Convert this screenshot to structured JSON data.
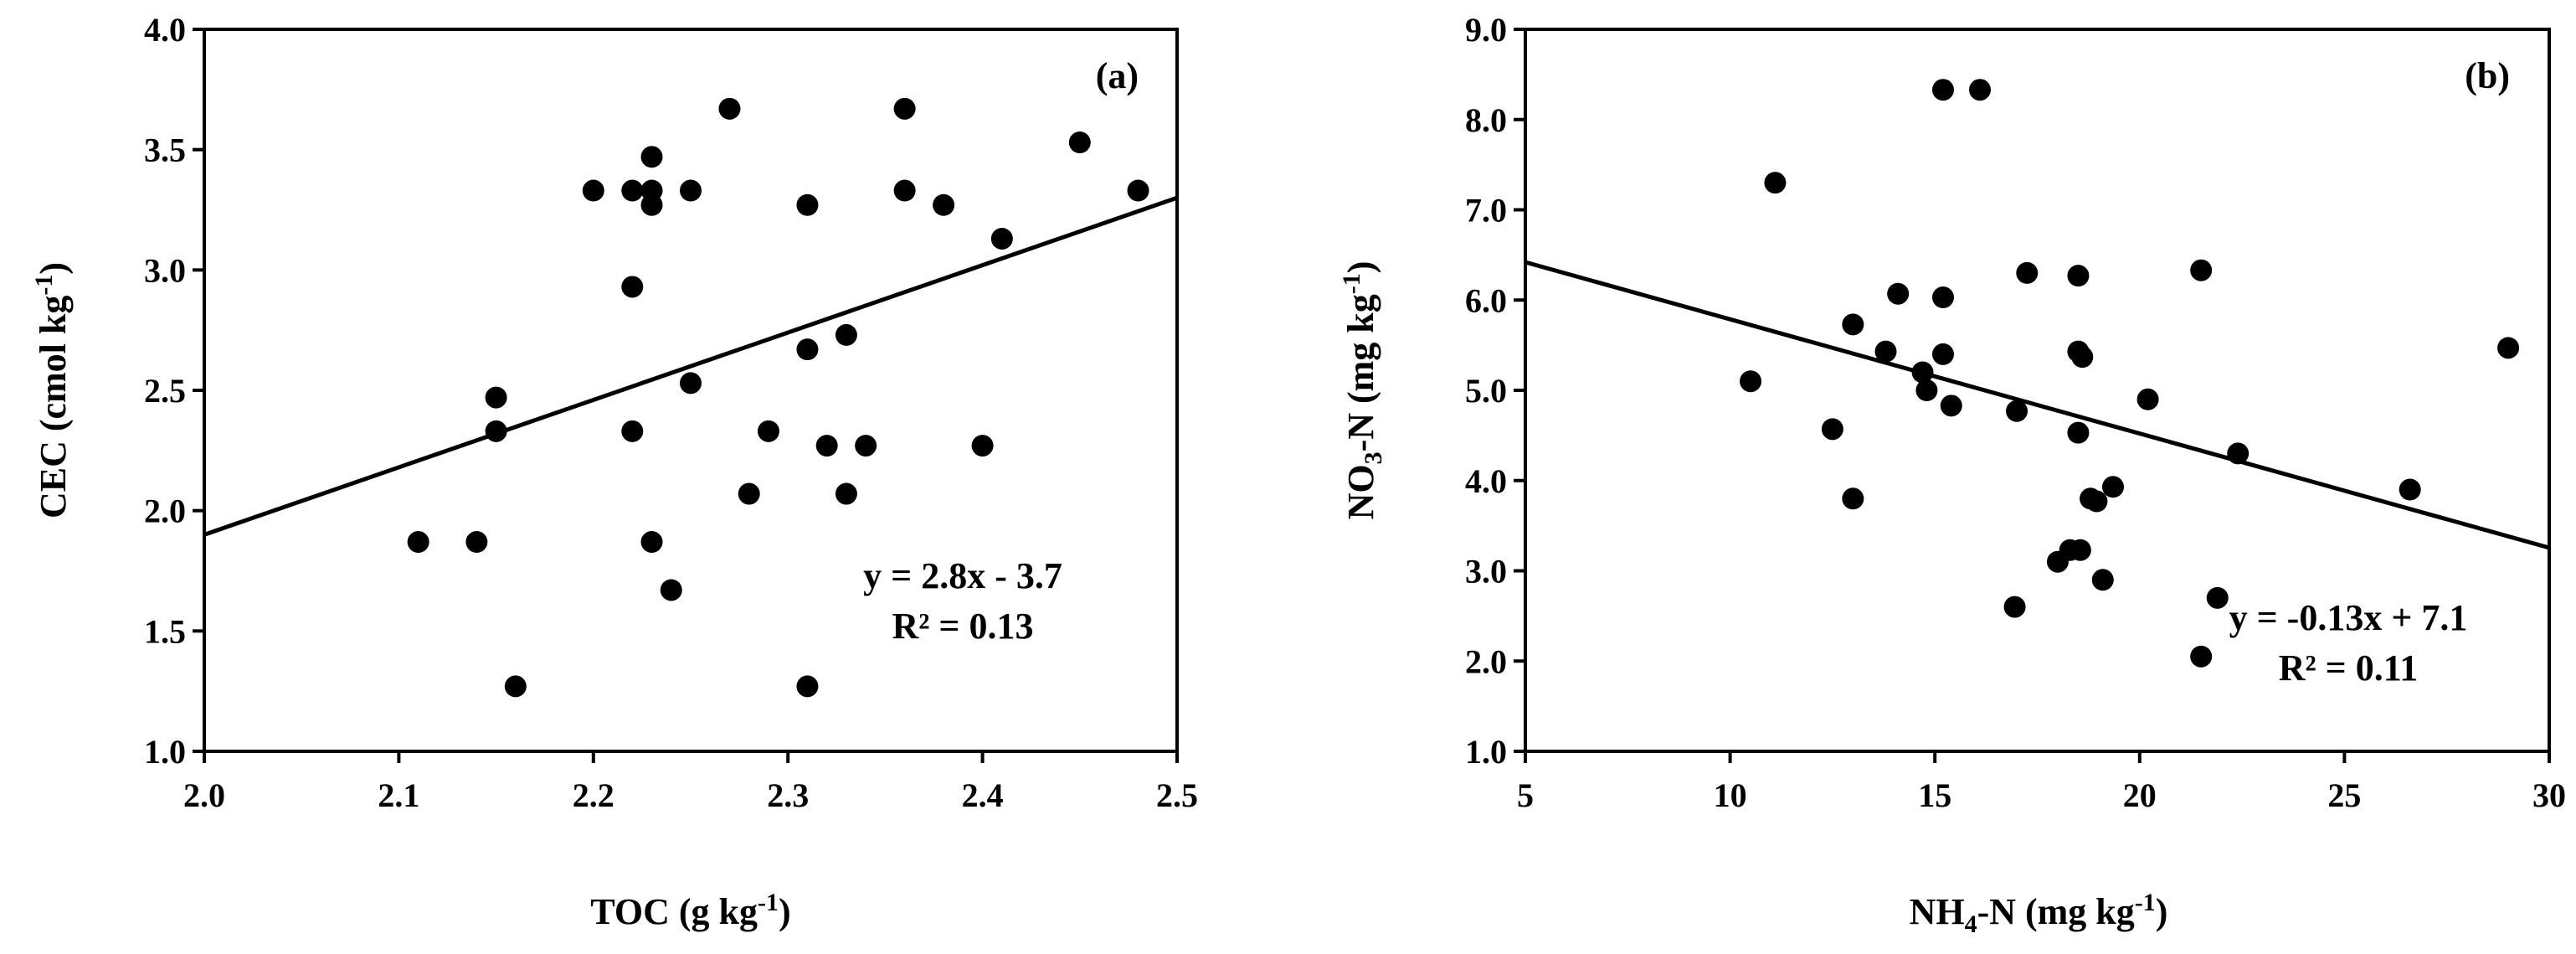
{
  "chart_data": [
    {
      "type": "scatter",
      "panel_label": "(a)",
      "xlabel_main": "TOC (g kg",
      "xlabel_sup": "-1",
      "xlabel_close": ")",
      "ylabel_main": "CEC (cmol kg",
      "ylabel_sup": "-1",
      "ylabel_close": ")",
      "xlim": [
        2.0,
        2.5
      ],
      "ylim": [
        1.0,
        4.0
      ],
      "xticks": [
        2.0,
        2.1,
        2.2,
        2.3,
        2.4,
        2.5
      ],
      "xtick_labels": [
        "2.0",
        "2.1",
        "2.2",
        "2.3",
        "2.4",
        "2.5"
      ],
      "yticks": [
        1.0,
        1.5,
        2.0,
        2.5,
        3.0,
        3.5,
        4.0
      ],
      "ytick_labels": [
        "1.0",
        "1.5",
        "2.0",
        "2.5",
        "3.0",
        "3.5",
        "4.0"
      ],
      "equation": "y = 2.8x - 3.7",
      "r_squared": "R² = 0.13",
      "trendline": {
        "slope": 2.8,
        "intercept": -3.7
      },
      "points": [
        {
          "x": 2.11,
          "y": 1.87
        },
        {
          "x": 2.14,
          "y": 1.87
        },
        {
          "x": 2.15,
          "y": 2.47
        },
        {
          "x": 2.15,
          "y": 2.33
        },
        {
          "x": 2.16,
          "y": 1.27
        },
        {
          "x": 2.2,
          "y": 3.33
        },
        {
          "x": 2.22,
          "y": 3.33
        },
        {
          "x": 2.22,
          "y": 2.93
        },
        {
          "x": 2.22,
          "y": 2.33
        },
        {
          "x": 2.23,
          "y": 3.47
        },
        {
          "x": 2.23,
          "y": 3.33
        },
        {
          "x": 2.23,
          "y": 3.27
        },
        {
          "x": 2.23,
          "y": 1.87
        },
        {
          "x": 2.24,
          "y": 1.67
        },
        {
          "x": 2.25,
          "y": 3.33
        },
        {
          "x": 2.25,
          "y": 2.53
        },
        {
          "x": 2.27,
          "y": 3.67
        },
        {
          "x": 2.28,
          "y": 2.07
        },
        {
          "x": 2.29,
          "y": 2.33
        },
        {
          "x": 2.31,
          "y": 3.27
        },
        {
          "x": 2.31,
          "y": 2.67
        },
        {
          "x": 2.31,
          "y": 1.27
        },
        {
          "x": 2.32,
          "y": 2.27
        },
        {
          "x": 2.33,
          "y": 2.73
        },
        {
          "x": 2.33,
          "y": 2.07
        },
        {
          "x": 2.34,
          "y": 2.27
        },
        {
          "x": 2.36,
          "y": 3.67
        },
        {
          "x": 2.36,
          "y": 3.33
        },
        {
          "x": 2.38,
          "y": 3.27
        },
        {
          "x": 2.4,
          "y": 2.27
        },
        {
          "x": 2.41,
          "y": 3.13
        },
        {
          "x": 2.45,
          "y": 3.53
        },
        {
          "x": 2.48,
          "y": 3.33
        }
      ]
    },
    {
      "type": "scatter",
      "panel_label": "(b)",
      "xlabel_main": "NH",
      "xlabel_sub": "4",
      "xlabel_rest": "-N (mg kg",
      "xlabel_sup": "-1",
      "xlabel_close": ")",
      "ylabel_main": "NO",
      "ylabel_sub": "3",
      "ylabel_rest": "-N (mg kg",
      "ylabel_sup": "-1",
      "ylabel_close": ")",
      "xlim": [
        5,
        30
      ],
      "ylim": [
        1.0,
        9.0
      ],
      "xticks": [
        5,
        10,
        15,
        20,
        25,
        30
      ],
      "xtick_labels": [
        "5",
        "10",
        "15",
        "20",
        "25",
        "30"
      ],
      "yticks": [
        1,
        2,
        3,
        4,
        5,
        6,
        7,
        8,
        9
      ],
      "ytick_labels": [
        "1.0",
        "2.0",
        "3.0",
        "4.0",
        "5.0",
        "6.0",
        "7.0",
        "8.0",
        "9.0"
      ],
      "equation": "y = -0.13x + 7.1",
      "r_squared": "R² = 0.11",
      "trendline": {
        "slope": -0.1266,
        "intercept": 7.053
      },
      "points": [
        {
          "x": 10.5,
          "y": 5.1
        },
        {
          "x": 11.1,
          "y": 7.3
        },
        {
          "x": 12.5,
          "y": 4.57
        },
        {
          "x": 13.0,
          "y": 5.73
        },
        {
          "x": 13.0,
          "y": 3.8
        },
        {
          "x": 13.8,
          "y": 5.43
        },
        {
          "x": 14.1,
          "y": 6.07
        },
        {
          "x": 14.7,
          "y": 5.2
        },
        {
          "x": 14.8,
          "y": 5.0
        },
        {
          "x": 15.2,
          "y": 8.33
        },
        {
          "x": 15.2,
          "y": 6.03
        },
        {
          "x": 15.2,
          "y": 5.4
        },
        {
          "x": 15.4,
          "y": 4.83
        },
        {
          "x": 16.1,
          "y": 8.33
        },
        {
          "x": 17.0,
          "y": 4.77
        },
        {
          "x": 16.95,
          "y": 2.6
        },
        {
          "x": 17.25,
          "y": 6.3
        },
        {
          "x": 18.0,
          "y": 3.1
        },
        {
          "x": 18.3,
          "y": 3.23
        },
        {
          "x": 18.5,
          "y": 6.27
        },
        {
          "x": 18.5,
          "y": 5.43
        },
        {
          "x": 18.6,
          "y": 5.37
        },
        {
          "x": 18.5,
          "y": 4.53
        },
        {
          "x": 18.55,
          "y": 3.23
        },
        {
          "x": 18.8,
          "y": 3.8
        },
        {
          "x": 18.95,
          "y": 3.77
        },
        {
          "x": 19.1,
          "y": 2.9
        },
        {
          "x": 19.35,
          "y": 3.93
        },
        {
          "x": 20.2,
          "y": 4.9
        },
        {
          "x": 21.5,
          "y": 6.33
        },
        {
          "x": 21.5,
          "y": 2.05
        },
        {
          "x": 21.9,
          "y": 2.7
        },
        {
          "x": 22.4,
          "y": 4.3
        },
        {
          "x": 26.6,
          "y": 3.9
        },
        {
          "x": 29.0,
          "y": 5.47
        }
      ]
    }
  ]
}
